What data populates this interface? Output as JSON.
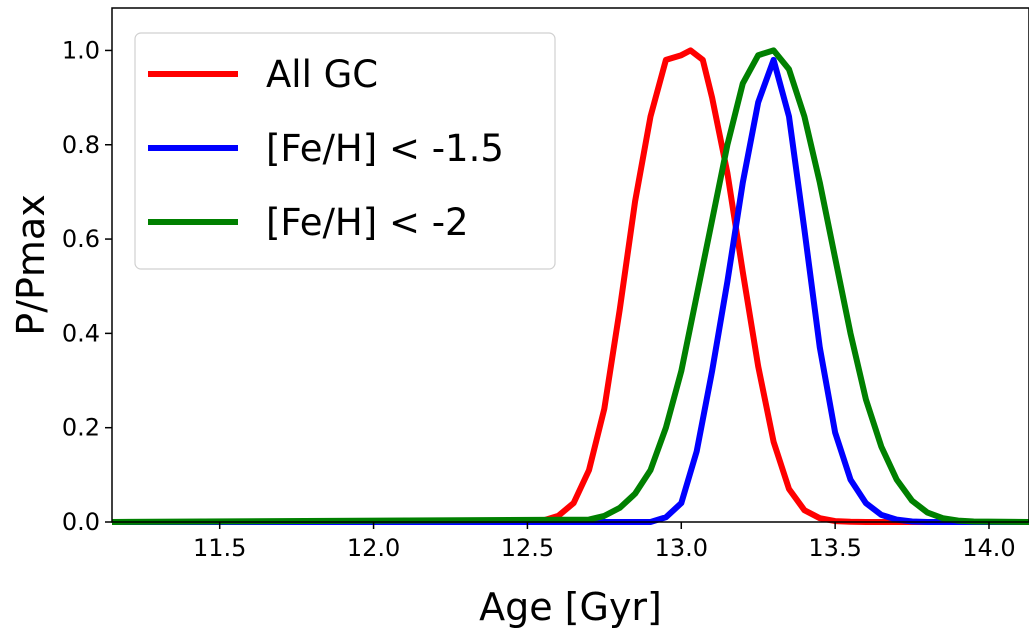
{
  "chart_data": {
    "type": "line",
    "xlabel": "Age [Gyr]",
    "ylabel": "P/Pmax",
    "xlim": [
      11.15,
      14.13
    ],
    "ylim": [
      0.0,
      1.09
    ],
    "xticks": [
      11.5,
      12.0,
      12.5,
      13.0,
      13.5,
      14.0
    ],
    "xtick_labels": [
      "11.5",
      "12.0",
      "12.5",
      "13.0",
      "13.5",
      "14.0"
    ],
    "yticks": [
      0.0,
      0.2,
      0.4,
      0.6,
      0.8,
      1.0
    ],
    "ytick_labels": [
      "0.0",
      "0.2",
      "0.4",
      "0.6",
      "0.8",
      "1.0"
    ],
    "grid": false,
    "legend_position": "top-left",
    "series": [
      {
        "name": "All GC",
        "color": "#ff0000",
        "x": [
          11.15,
          12.5,
          12.55,
          12.6,
          12.65,
          12.7,
          12.75,
          12.8,
          12.85,
          12.9,
          12.95,
          13.0,
          13.03,
          13.07,
          13.1,
          13.15,
          13.2,
          13.25,
          13.3,
          13.35,
          13.4,
          13.45,
          13.5,
          13.55,
          13.6,
          13.7,
          14.13
        ],
        "y": [
          0.0,
          0.0,
          0.003,
          0.013,
          0.04,
          0.11,
          0.24,
          0.45,
          0.68,
          0.86,
          0.98,
          0.99,
          1.0,
          0.98,
          0.9,
          0.74,
          0.53,
          0.33,
          0.17,
          0.07,
          0.025,
          0.008,
          0.002,
          0.0005,
          0.0,
          0.0,
          0.0
        ]
      },
      {
        "name": "[Fe/H] < -1.5",
        "color": "#0000ff",
        "x": [
          11.15,
          12.9,
          12.95,
          13.0,
          13.05,
          13.1,
          13.15,
          13.2,
          13.25,
          13.3,
          13.35,
          13.4,
          13.45,
          13.5,
          13.55,
          13.6,
          13.65,
          13.7,
          13.75,
          13.8,
          13.9,
          14.13
        ],
        "y": [
          0.0,
          0.0,
          0.01,
          0.04,
          0.15,
          0.32,
          0.51,
          0.72,
          0.89,
          0.98,
          0.86,
          0.62,
          0.37,
          0.19,
          0.09,
          0.04,
          0.015,
          0.005,
          0.001,
          0.0,
          0.0,
          0.0
        ]
      },
      {
        "name": "[Fe/H] < -2",
        "color": "#008000",
        "x": [
          11.15,
          12.7,
          12.75,
          12.8,
          12.85,
          12.9,
          12.95,
          13.0,
          13.05,
          13.1,
          13.15,
          13.2,
          13.25,
          13.3,
          13.35,
          13.4,
          13.45,
          13.5,
          13.55,
          13.6,
          13.65,
          13.7,
          13.75,
          13.8,
          13.85,
          13.9,
          13.95,
          14.13
        ],
        "y": [
          0.0,
          0.005,
          0.013,
          0.03,
          0.06,
          0.11,
          0.2,
          0.32,
          0.48,
          0.64,
          0.8,
          0.93,
          0.99,
          1.0,
          0.96,
          0.86,
          0.72,
          0.56,
          0.4,
          0.26,
          0.16,
          0.09,
          0.045,
          0.02,
          0.008,
          0.003,
          0.001,
          0.0
        ]
      }
    ]
  }
}
